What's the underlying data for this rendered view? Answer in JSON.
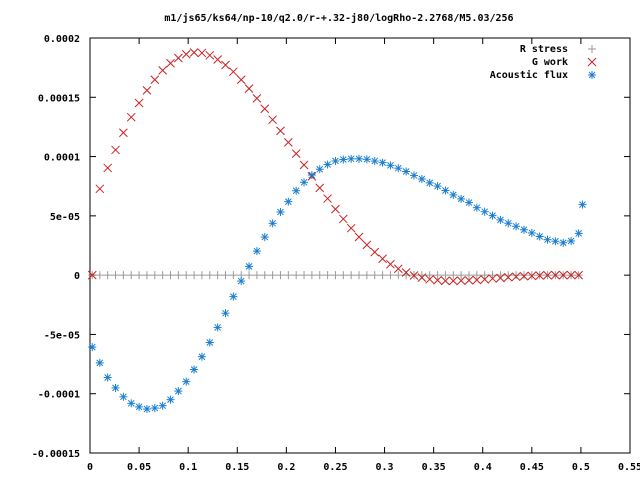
{
  "chart_data": {
    "type": "scatter",
    "title": "m1/js65/ks64/np-10/q2.0/r-+.32-j80/logRho-2.2768/M5.03/256",
    "xlabel": "",
    "ylabel": "",
    "xlim": [
      0,
      0.55
    ],
    "ylim": [
      -0.00015,
      0.0002
    ],
    "grid": false,
    "legend_position": "top-right",
    "x_ticks": [
      {
        "value": 0,
        "label": "0"
      },
      {
        "value": 0.05,
        "label": "0.05"
      },
      {
        "value": 0.1,
        "label": "0.1"
      },
      {
        "value": 0.15,
        "label": "0.15"
      },
      {
        "value": 0.2,
        "label": "0.2"
      },
      {
        "value": 0.25,
        "label": "0.25"
      },
      {
        "value": 0.3,
        "label": "0.3"
      },
      {
        "value": 0.35,
        "label": "0.35"
      },
      {
        "value": 0.4,
        "label": "0.4"
      },
      {
        "value": 0.45,
        "label": "0.45"
      },
      {
        "value": 0.5,
        "label": "0.5"
      },
      {
        "value": 0.55,
        "label": "0.55"
      }
    ],
    "y_ticks": [
      {
        "value": 0.0002,
        "label": "0.0002"
      },
      {
        "value": 0.00015,
        "label": "0.00015"
      },
      {
        "value": 0.0001,
        "label": "0.0001"
      },
      {
        "value": 5e-05,
        "label": "5e-05"
      },
      {
        "value": 0,
        "label": "0"
      },
      {
        "value": -5e-05,
        "label": "-5e-05"
      },
      {
        "value": -0.0001,
        "label": "-0.0001"
      },
      {
        "value": -0.00015,
        "label": "-0.00015"
      }
    ],
    "x": [
      0.0023,
      0.01,
      0.018,
      0.026,
      0.034,
      0.042,
      0.05,
      0.058,
      0.066,
      0.074,
      0.082,
      0.09,
      0.098,
      0.106,
      0.114,
      0.122,
      0.13,
      0.138,
      0.146,
      0.154,
      0.162,
      0.17,
      0.178,
      0.186,
      0.194,
      0.202,
      0.21,
      0.218,
      0.226,
      0.234,
      0.242,
      0.25,
      0.258,
      0.266,
      0.274,
      0.282,
      0.29,
      0.298,
      0.306,
      0.314,
      0.322,
      0.33,
      0.338,
      0.346,
      0.354,
      0.362,
      0.37,
      0.378,
      0.386,
      0.394,
      0.402,
      0.41,
      0.418,
      0.426,
      0.434,
      0.442,
      0.45,
      0.458,
      0.466,
      0.474,
      0.482,
      0.49,
      0.4977
    ],
    "series": [
      {
        "name": "R stress",
        "marker": "plus",
        "color": "#999999",
        "values": [
          0,
          0,
          0,
          0,
          0,
          0,
          0,
          0,
          0,
          0,
          0,
          0,
          0,
          0,
          0,
          0,
          0,
          0,
          0,
          0,
          0,
          0,
          0,
          0,
          0,
          0,
          0,
          0,
          0,
          0,
          0,
          0,
          0,
          0,
          0,
          0,
          0,
          0,
          0,
          0,
          0,
          0,
          0,
          0,
          0,
          0,
          0,
          0,
          0,
          0,
          0,
          0,
          0,
          0,
          0,
          0,
          0,
          0,
          0,
          0,
          0,
          0,
          0
        ]
      },
      {
        "name": "G work",
        "marker": "cross",
        "color": "#cc2222",
        "values": [
          0,
          7.28e-05,
          9.04e-05,
          0.0001056,
          0.0001201,
          0.0001332,
          0.0001452,
          0.0001558,
          0.0001648,
          0.0001727,
          0.0001787,
          0.0001831,
          0.0001863,
          0.0001878,
          0.0001874,
          0.0001854,
          0.0001819,
          0.0001772,
          0.0001716,
          0.0001648,
          0.0001573,
          0.0001491,
          0.0001403,
          0.0001311,
          0.0001217,
          0.000112,
          0.0001025,
          9.29e-05,
          8.33e-05,
          7.36e-05,
          6.46e-05,
          5.57e-05,
          4.74e-05,
          3.96e-05,
          3.22e-05,
          2.55e-05,
          1.94e-05,
          1.38e-05,
          9.2e-06,
          5.4e-06,
          2.2e-06,
          -3e-07,
          -2.1e-06,
          -3.5e-06,
          -4.3e-06,
          -4.8e-06,
          -4.8e-06,
          -4.6e-06,
          -4.4e-06,
          -4.1e-06,
          -3.6e-06,
          -2.9e-06,
          -2.4e-06,
          -1.8e-06,
          -1.3e-06,
          -9e-07,
          -6e-07,
          -3e-07,
          -1e-07,
          0,
          0,
          0,
          0
        ]
      },
      {
        "name": "Acoustic flux",
        "marker": "asterisk",
        "color": "#1a7ecf",
        "values": [
          -6.07e-05,
          -7.4e-05,
          -8.63e-05,
          -9.51e-05,
          -0.0001026,
          -0.0001081,
          -0.0001111,
          -0.0001129,
          -0.0001121,
          -0.0001101,
          -0.000105,
          -9.78e-05,
          -8.98e-05,
          -7.96e-05,
          -6.88e-05,
          -5.68e-05,
          -4.41e-05,
          -3.21e-05,
          -1.81e-05,
          -5e-06,
          7.4e-06,
          2.03e-05,
          3.21e-05,
          4.37e-05,
          5.33e-05,
          6.2e-05,
          7.12e-05,
          7.83e-05,
          8.44e-05,
          8.93e-05,
          9.33e-05,
          9.63e-05,
          9.75e-05,
          9.81e-05,
          9.81e-05,
          9.77e-05,
          9.62e-05,
          9.49e-05,
          9.26e-05,
          9.02e-05,
          8.74e-05,
          8.41e-05,
          8.11e-05,
          7.78e-05,
          7.51e-05,
          7.14e-05,
          6.77e-05,
          6.43e-05,
          6.12e-05,
          5.69e-05,
          5.35e-05,
          5.02e-05,
          4.66e-05,
          4.38e-05,
          4.12e-05,
          3.83e-05,
          3.56e-05,
          3.26e-05,
          2.99e-05,
          2.86e-05,
          2.73e-05,
          2.88e-05,
          3.52e-05
        ]
      }
    ],
    "extra_points": [
      {
        "series": "Acoustic flux",
        "x": 0.5016,
        "y": 5.95e-05
      }
    ]
  }
}
